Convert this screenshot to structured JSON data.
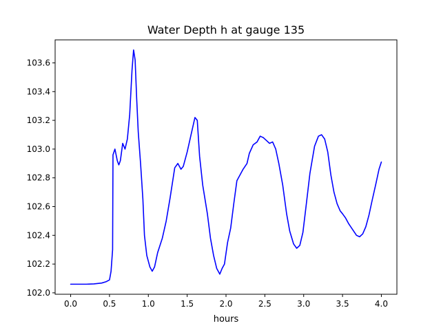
{
  "chart_data": {
    "type": "line",
    "title": "Water Depth h at gauge 135",
    "xlabel": "hours",
    "ylabel": "",
    "xlim": [
      -0.2,
      4.2
    ],
    "ylim": [
      101.99,
      103.76
    ],
    "grid": false,
    "x_ticks": [
      0.0,
      0.5,
      1.0,
      1.5,
      2.0,
      2.5,
      3.0,
      3.5,
      4.0
    ],
    "x_tick_labels": [
      "0.0",
      "0.5",
      "1.0",
      "1.5",
      "2.0",
      "2.5",
      "3.0",
      "3.5",
      "4.0"
    ],
    "y_ticks": [
      102.0,
      102.2,
      102.4,
      102.6,
      102.8,
      103.0,
      103.2,
      103.4,
      103.6
    ],
    "y_tick_labels": [
      "102.0",
      "102.2",
      "102.4",
      "102.6",
      "102.8",
      "103.0",
      "103.2",
      "103.4",
      "103.6"
    ],
    "series": [
      {
        "color": "#0000ff",
        "points": [
          [
            0.0,
            102.06
          ],
          [
            0.2,
            102.06
          ],
          [
            0.3,
            102.062
          ],
          [
            0.4,
            102.068
          ],
          [
            0.46,
            102.078
          ],
          [
            0.5,
            102.09
          ],
          [
            0.52,
            102.15
          ],
          [
            0.54,
            102.3
          ],
          [
            0.545,
            102.96
          ],
          [
            0.57,
            103.0
          ],
          [
            0.6,
            102.92
          ],
          [
            0.62,
            102.89
          ],
          [
            0.64,
            102.92
          ],
          [
            0.67,
            103.04
          ],
          [
            0.7,
            103.0
          ],
          [
            0.73,
            103.07
          ],
          [
            0.76,
            103.24
          ],
          [
            0.79,
            103.55
          ],
          [
            0.81,
            103.69
          ],
          [
            0.83,
            103.62
          ],
          [
            0.85,
            103.35
          ],
          [
            0.87,
            103.12
          ],
          [
            0.9,
            102.9
          ],
          [
            0.93,
            102.65
          ],
          [
            0.95,
            102.4
          ],
          [
            0.98,
            102.26
          ],
          [
            1.02,
            102.18
          ],
          [
            1.05,
            102.15
          ],
          [
            1.08,
            102.18
          ],
          [
            1.12,
            102.28
          ],
          [
            1.18,
            102.38
          ],
          [
            1.23,
            102.5
          ],
          [
            1.28,
            102.66
          ],
          [
            1.34,
            102.87
          ],
          [
            1.38,
            102.9
          ],
          [
            1.42,
            102.86
          ],
          [
            1.45,
            102.88
          ],
          [
            1.5,
            102.98
          ],
          [
            1.55,
            103.1
          ],
          [
            1.6,
            103.22
          ],
          [
            1.63,
            103.2
          ],
          [
            1.66,
            102.95
          ],
          [
            1.7,
            102.75
          ],
          [
            1.76,
            102.55
          ],
          [
            1.8,
            102.38
          ],
          [
            1.84,
            102.26
          ],
          [
            1.88,
            102.17
          ],
          [
            1.92,
            102.13
          ],
          [
            1.95,
            102.17
          ],
          [
            1.98,
            102.2
          ],
          [
            2.02,
            102.35
          ],
          [
            2.06,
            102.45
          ],
          [
            2.1,
            102.62
          ],
          [
            2.14,
            102.78
          ],
          [
            2.18,
            102.82
          ],
          [
            2.22,
            102.86
          ],
          [
            2.27,
            102.9
          ],
          [
            2.3,
            102.97
          ],
          [
            2.35,
            103.03
          ],
          [
            2.4,
            103.05
          ],
          [
            2.44,
            103.09
          ],
          [
            2.48,
            103.08
          ],
          [
            2.52,
            103.06
          ],
          [
            2.56,
            103.04
          ],
          [
            2.6,
            103.05
          ],
          [
            2.64,
            103.0
          ],
          [
            2.68,
            102.9
          ],
          [
            2.73,
            102.75
          ],
          [
            2.78,
            102.55
          ],
          [
            2.82,
            102.43
          ],
          [
            2.87,
            102.34
          ],
          [
            2.91,
            102.31
          ],
          [
            2.95,
            102.33
          ],
          [
            2.99,
            102.42
          ],
          [
            3.03,
            102.6
          ],
          [
            3.08,
            102.83
          ],
          [
            3.14,
            103.02
          ],
          [
            3.19,
            103.09
          ],
          [
            3.23,
            103.1
          ],
          [
            3.27,
            103.07
          ],
          [
            3.31,
            102.98
          ],
          [
            3.35,
            102.82
          ],
          [
            3.39,
            102.7
          ],
          [
            3.43,
            102.62
          ],
          [
            3.47,
            102.57
          ],
          [
            3.5,
            102.55
          ],
          [
            3.54,
            102.52
          ],
          [
            3.58,
            102.48
          ],
          [
            3.63,
            102.44
          ],
          [
            3.68,
            102.4
          ],
          [
            3.72,
            102.39
          ],
          [
            3.76,
            102.41
          ],
          [
            3.8,
            102.46
          ],
          [
            3.84,
            102.54
          ],
          [
            3.88,
            102.64
          ],
          [
            3.93,
            102.76
          ],
          [
            3.97,
            102.86
          ],
          [
            4.0,
            102.91
          ]
        ]
      }
    ]
  }
}
